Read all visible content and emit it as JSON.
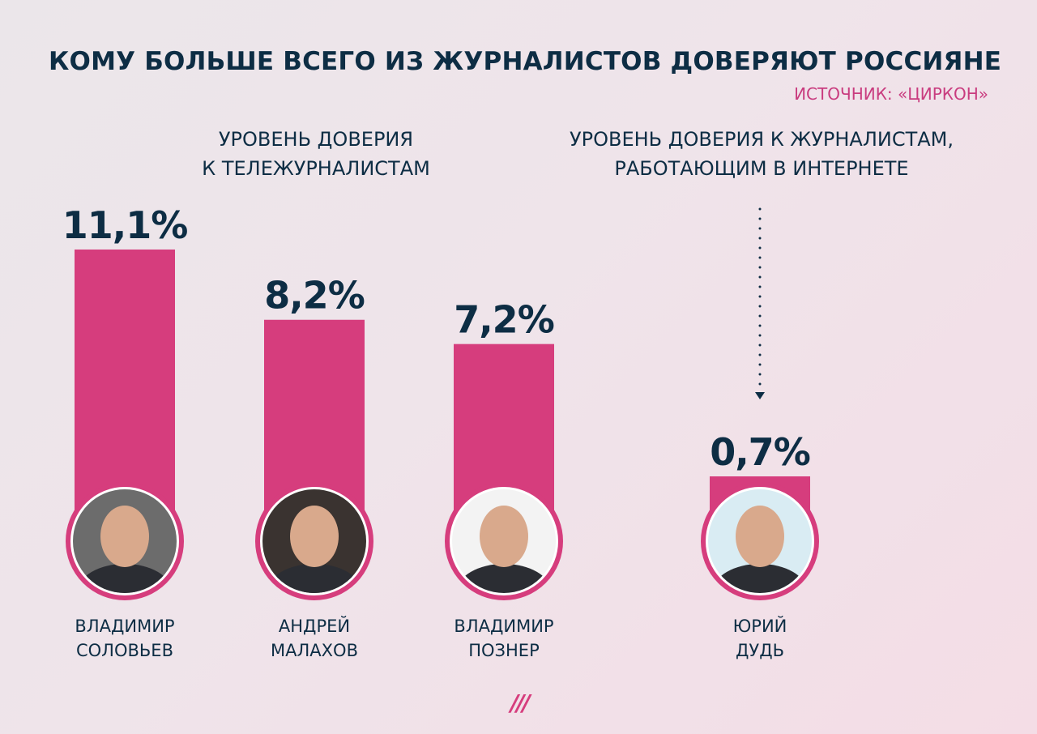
{
  "title": "КОМУ БОЛЬШЕ ВСЕГО ИЗ ЖУРНАЛИСТОВ ДОВЕРЯЮТ РОССИЯНЕ",
  "source": "ИСТОЧНИК: «ЦИРКОН»",
  "groups": {
    "tv": {
      "line1": "УРОВЕНЬ ДОВЕРИЯ",
      "line2": "К ТЕЛЕЖУРНАЛИСТАМ"
    },
    "web": {
      "line1": "УРОВЕНЬ ДОВЕРИЯ К ЖУРНАЛИСТАМ,",
      "line2": "РАБОТАЮЩИМ В ИНТЕРНЕТЕ"
    }
  },
  "logo": "///",
  "colors": {
    "bar": "#d63d7d",
    "text": "#0d2d44",
    "accent": "#c93c7f"
  },
  "chart_data": {
    "type": "bar",
    "unit": "%",
    "categories": [
      "ВЛАДИМИР СОЛОВЬЕВ",
      "АНДРЕЙ МАЛАХОВ",
      "ВЛАДИМИР ПОЗНЕР",
      "ЮРИЙ ДУДЬ"
    ],
    "values": [
      11.1,
      8.2,
      7.2,
      0.7
    ],
    "value_labels": [
      "11,1%",
      "8,2%",
      "7,2%",
      "0,7%"
    ],
    "name_lines": [
      [
        "ВЛАДИМИР",
        "СОЛОВЬЕВ"
      ],
      [
        "АНДРЕЙ",
        "МАЛАХОВ"
      ],
      [
        "ВЛАДИМИР",
        "ПОЗНЕР"
      ],
      [
        "ЮРИЙ",
        "ДУДЬ"
      ]
    ],
    "group": [
      "tv",
      "tv",
      "tv",
      "web"
    ],
    "ylim": [
      0,
      11.1
    ],
    "grid": false
  }
}
